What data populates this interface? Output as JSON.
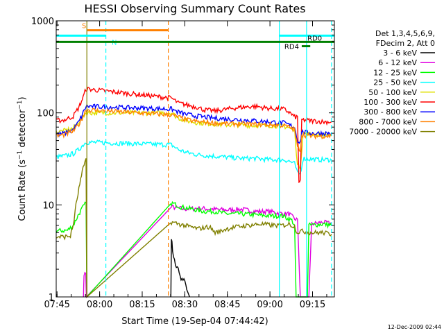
{
  "chart_data": {
    "type": "line",
    "title": "HESSI Observing Summary Count Rates",
    "xlabel": "Start Time (19-Sep-04 07:44:42)",
    "ylabel": "Count Rate (s",
    "ylabel_exp1": "−1",
    "ylabel_mid": " detector",
    "ylabel_exp2": "−1",
    "ylabel_end": ")",
    "y_scale": "log",
    "ylim": [
      1,
      1000
    ],
    "xlim_minutes": [
      0,
      98
    ],
    "x_ticks": [
      {
        "label": "07:45",
        "t": 0.3
      },
      {
        "label": "08:00",
        "t": 15.3
      },
      {
        "label": "08:15",
        "t": 30.3
      },
      {
        "label": "08:30",
        "t": 45.3
      },
      {
        "label": "08:45",
        "t": 60.3
      },
      {
        "label": "09:00",
        "t": 75.3
      },
      {
        "label": "09:15",
        "t": 90.3
      }
    ],
    "y_ticks": [
      {
        "label": "1",
        "v": 1
      },
      {
        "label": "10",
        "v": 10
      },
      {
        "label": "100",
        "v": 100
      },
      {
        "label": "1000",
        "v": 1000
      }
    ],
    "legend": {
      "header1": "Det 1,3,4,5,6,9,",
      "header2": "FDecim 2, Att 0",
      "placement": "right"
    },
    "series": [
      {
        "name": "3 - 6 keV",
        "color": "#000000",
        "points": [
          [
            40.4,
            1.0
          ],
          [
            40.6,
            4.5
          ],
          [
            41,
            3.2
          ],
          [
            42,
            2.2
          ],
          [
            43,
            2.0
          ],
          [
            44,
            1.5
          ],
          [
            45,
            1.6
          ],
          [
            46,
            1.2
          ],
          [
            47,
            1.0
          ]
        ]
      },
      {
        "name": "6 - 12 keV",
        "color": "#e000e0",
        "points": [
          [
            9.6,
            1.0
          ],
          [
            9.8,
            1.8
          ],
          [
            10.4,
            1.8
          ],
          [
            10.6,
            1.0
          ],
          [
            40.6,
            9.5
          ],
          [
            45,
            9
          ],
          [
            50,
            9.2
          ],
          [
            55,
            9
          ],
          [
            60,
            8.8
          ],
          [
            65,
            9
          ],
          [
            70,
            8.5
          ],
          [
            75,
            8.5
          ],
          [
            80,
            8.0
          ],
          [
            82,
            8.0
          ],
          [
            83,
            7.5
          ],
          [
            84,
            7.0
          ],
          [
            85,
            7.0
          ],
          [
            86,
            1.0
          ],
          [
            89,
            1.0
          ],
          [
            90,
            6.2
          ],
          [
            94,
            6.5
          ],
          [
            97,
            6.2
          ]
        ]
      },
      {
        "name": "12 - 25 keV",
        "color": "#00ff00",
        "points": [
          [
            0,
            5.2
          ],
          [
            4,
            5.3
          ],
          [
            6,
            6.0
          ],
          [
            8,
            8.0
          ],
          [
            9.5,
            9.5
          ],
          [
            10.5,
            10.5
          ],
          [
            10.8,
            1.0
          ],
          [
            40.6,
            10.5
          ],
          [
            44,
            9.5
          ],
          [
            48,
            9.0
          ],
          [
            52,
            8.5
          ],
          [
            56,
            8.5
          ],
          [
            60,
            8.0
          ],
          [
            65,
            8.0
          ],
          [
            70,
            7.8
          ],
          [
            75,
            7.6
          ],
          [
            80,
            7.6
          ],
          [
            82,
            7.0
          ],
          [
            83,
            6.8
          ],
          [
            84,
            6.0
          ],
          [
            84.5,
            1.0
          ],
          [
            88.5,
            1.0
          ],
          [
            89,
            6.0
          ],
          [
            94,
            6.2
          ],
          [
            97,
            6.0
          ]
        ]
      },
      {
        "name": "25 - 50 keV",
        "color": "#00ffff",
        "points": [
          [
            0,
            33
          ],
          [
            3,
            34
          ],
          [
            6,
            36
          ],
          [
            8,
            40
          ],
          [
            9.5,
            45
          ],
          [
            10.5,
            48
          ],
          [
            40.6,
            45
          ],
          [
            43,
            40
          ],
          [
            46,
            37
          ],
          [
            50,
            35
          ],
          [
            55,
            34
          ],
          [
            60,
            33
          ],
          [
            65,
            32
          ],
          [
            70,
            32
          ],
          [
            75,
            31
          ],
          [
            80,
            31
          ],
          [
            82,
            30
          ],
          [
            84,
            28
          ],
          [
            85,
            22
          ],
          [
            86,
            22
          ],
          [
            87,
            32
          ],
          [
            92,
            31
          ],
          [
            97,
            31
          ]
        ]
      },
      {
        "name": "50 - 100 keV",
        "color": "#e0e000",
        "points": [
          [
            0,
            62
          ],
          [
            3,
            64
          ],
          [
            6,
            68
          ],
          [
            8,
            80
          ],
          [
            9.5,
            92
          ],
          [
            10.5,
            100
          ],
          [
            40.6,
            100
          ],
          [
            43,
            88
          ],
          [
            46,
            82
          ],
          [
            50,
            78
          ],
          [
            55,
            76
          ],
          [
            60,
            74
          ],
          [
            65,
            74
          ],
          [
            70,
            73
          ],
          [
            75,
            73
          ],
          [
            80,
            72
          ],
          [
            82,
            69
          ],
          [
            84,
            64
          ],
          [
            85,
            27
          ],
          [
            86,
            26
          ],
          [
            87,
            60
          ],
          [
            92,
            58
          ],
          [
            97,
            58
          ]
        ]
      },
      {
        "name": "100 - 300 keV",
        "color": "#ff0000",
        "points": [
          [
            0,
            82
          ],
          [
            3,
            84
          ],
          [
            6,
            92
          ],
          [
            8,
            115
          ],
          [
            9.5,
            148
          ],
          [
            10.5,
            182
          ],
          [
            40.6,
            145
          ],
          [
            43,
            128
          ],
          [
            46,
            122
          ],
          [
            50,
            115
          ],
          [
            52,
            108
          ],
          [
            56,
            105
          ],
          [
            58,
            107
          ],
          [
            62,
            112
          ],
          [
            65,
            115
          ],
          [
            70,
            118
          ],
          [
            75,
            112
          ],
          [
            80,
            110
          ],
          [
            82,
            102
          ],
          [
            84,
            90
          ],
          [
            85,
            90
          ],
          [
            85.5,
            18
          ],
          [
            86,
            18
          ],
          [
            86.5,
            84
          ],
          [
            90,
            82
          ],
          [
            94,
            80
          ],
          [
            97,
            80
          ]
        ]
      },
      {
        "name": "300 - 800 keV",
        "color": "#0000ff",
        "points": [
          [
            0,
            58
          ],
          [
            3,
            60
          ],
          [
            6,
            66
          ],
          [
            8,
            80
          ],
          [
            9.5,
            100
          ],
          [
            10.5,
            118
          ],
          [
            40.6,
            110
          ],
          [
            43,
            102
          ],
          [
            46,
            96
          ],
          [
            50,
            92
          ],
          [
            55,
            88
          ],
          [
            60,
            86
          ],
          [
            65,
            84
          ],
          [
            70,
            82
          ],
          [
            75,
            80
          ],
          [
            80,
            78
          ],
          [
            82,
            74
          ],
          [
            84,
            70
          ],
          [
            85,
            50
          ],
          [
            86,
            48
          ],
          [
            86.5,
            62
          ],
          [
            90,
            60
          ],
          [
            94,
            60
          ],
          [
            97,
            60
          ]
        ]
      },
      {
        "name": "800 - 7000 keV",
        "color": "#ff8000",
        "points": [
          [
            0,
            56
          ],
          [
            3,
            58
          ],
          [
            6,
            63
          ],
          [
            8,
            75
          ],
          [
            9.5,
            92
          ],
          [
            10.5,
            108
          ],
          [
            40.6,
            95
          ],
          [
            43,
            90
          ],
          [
            46,
            84
          ],
          [
            50,
            80
          ],
          [
            55,
            78
          ],
          [
            60,
            76
          ],
          [
            65,
            76
          ],
          [
            70,
            75
          ],
          [
            75,
            74
          ],
          [
            80,
            73
          ],
          [
            82,
            70
          ],
          [
            84,
            66
          ],
          [
            85,
            42
          ],
          [
            86,
            40
          ],
          [
            86.5,
            58
          ],
          [
            90,
            56
          ],
          [
            94,
            56
          ],
          [
            97,
            56
          ]
        ]
      },
      {
        "name": "7000 - 20000 keV",
        "color": "#808000",
        "points": [
          [
            0,
            4.5
          ],
          [
            3,
            4.5
          ],
          [
            5,
            4.6
          ],
          [
            6,
            6.0
          ],
          [
            7,
            10
          ],
          [
            8,
            15
          ],
          [
            9.5,
            25
          ],
          [
            10.5,
            32
          ],
          [
            10.8,
            1.0
          ],
          [
            40.6,
            6.5
          ],
          [
            45,
            6.0
          ],
          [
            50,
            5.5
          ],
          [
            54,
            5.8
          ],
          [
            56,
            5.0
          ],
          [
            58,
            5.2
          ],
          [
            60,
            5.5
          ],
          [
            64,
            5.8
          ],
          [
            68,
            6.0
          ],
          [
            72,
            6.2
          ],
          [
            76,
            6.0
          ],
          [
            80,
            6.0
          ],
          [
            82,
            6.2
          ],
          [
            84,
            5.8
          ],
          [
            85,
            5.0
          ],
          [
            86,
            5.2
          ],
          [
            90,
            5.0
          ],
          [
            94,
            5.0
          ],
          [
            97,
            4.8
          ]
        ]
      }
    ],
    "annotations": {
      "vlines_solid": [
        {
          "t": 10.8,
          "color": "#808000"
        },
        {
          "t": 78.6,
          "color": "#00ffff"
        },
        {
          "t": 88.2,
          "color": "#00ffff"
        }
      ],
      "vlines_dashed": [
        {
          "t": 17.5,
          "color": "#00ffff"
        },
        {
          "t": 39.5,
          "color": "#ff8000"
        },
        {
          "t": 97.0,
          "color": "#00ffff"
        }
      ],
      "bars": [
        {
          "label": "S",
          "color": "#ff8000",
          "t0": 11.0,
          "t1": 39.5,
          "v": 790
        },
        {
          "label": "N",
          "color": "#00ffff",
          "t0": 0.0,
          "t1": 17.5,
          "v": 690
        },
        {
          "label": "",
          "color": "#00ffff",
          "t0": 78.6,
          "t1": 98.0,
          "v": 690
        },
        {
          "label": "",
          "color": "#008000",
          "t0": 0.0,
          "t1": 98.0,
          "v": 590
        },
        {
          "label": "RD4",
          "color": "#008000",
          "t0": 86.5,
          "t1": 89.5,
          "v": 530
        }
      ],
      "text_marks": [
        {
          "label": "RD0",
          "color": "#000000",
          "t": 88.5,
          "v": 610
        }
      ]
    },
    "timestamp": "12-Dec-2009 02:44"
  }
}
